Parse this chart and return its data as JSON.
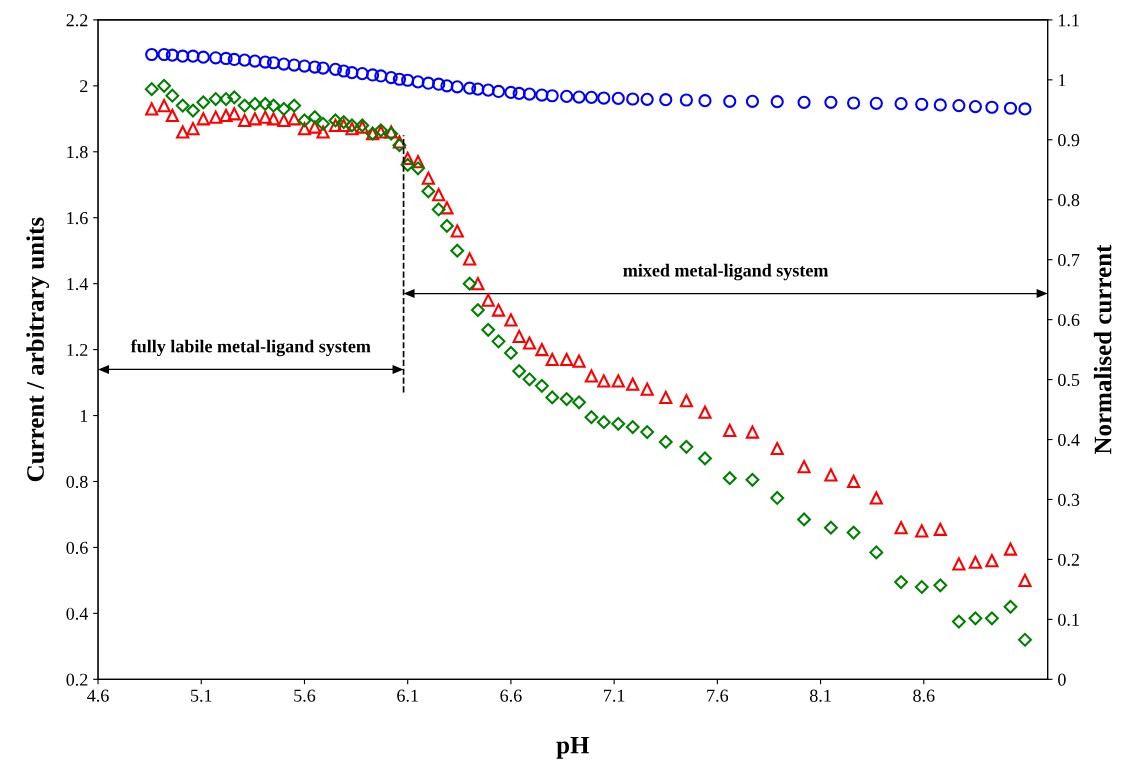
{
  "chart_data": {
    "type": "scatter",
    "xlabel": "pH",
    "ylabel": "Current / arbitrary units",
    "y2label": "Normalised current",
    "x": [
      4.86,
      4.92,
      4.96,
      5.01,
      5.06,
      5.11,
      5.17,
      5.22,
      5.26,
      5.31,
      5.36,
      5.41,
      5.45,
      5.5,
      5.55,
      5.6,
      5.65,
      5.69,
      5.75,
      5.79,
      5.83,
      5.88,
      5.93,
      5.97,
      6.02,
      6.06,
      6.1,
      6.15,
      6.2,
      6.25,
      6.29,
      6.34,
      6.4,
      6.44,
      6.49,
      6.54,
      6.6,
      6.64,
      6.69,
      6.75,
      6.8,
      6.87,
      6.93,
      6.99,
      7.05,
      7.12,
      7.19,
      7.26,
      7.35,
      7.45,
      7.54,
      7.66,
      7.77,
      7.89,
      8.02,
      8.15,
      8.26,
      8.37,
      8.49,
      8.59,
      8.68,
      8.77,
      8.85,
      8.93,
      9.02,
      9.09
    ],
    "series": [
      {
        "color": "#0000ff",
        "marker": "circle",
        "values": [
          2.095,
          2.095,
          2.093,
          2.09,
          2.09,
          2.087,
          2.085,
          2.083,
          2.08,
          2.078,
          2.075,
          2.072,
          2.07,
          2.066,
          2.063,
          2.06,
          2.057,
          2.054,
          2.05,
          2.045,
          2.04,
          2.037,
          2.033,
          2.03,
          2.025,
          2.02,
          2.017,
          2.012,
          2.008,
          2.005,
          2.0,
          1.997,
          1.993,
          1.99,
          1.987,
          1.983,
          1.98,
          1.977,
          1.975,
          1.972,
          1.97,
          1.968,
          1.966,
          1.965,
          1.963,
          1.962,
          1.96,
          1.959,
          1.958,
          1.957,
          1.955,
          1.953,
          1.953,
          1.952,
          1.95,
          1.95,
          1.948,
          1.947,
          1.946,
          1.944,
          1.942,
          1.94,
          1.937,
          1.935,
          1.932,
          1.93
        ]
      },
      {
        "color": "#ff0000",
        "marker": "triangle",
        "values": [
          1.93,
          1.94,
          1.91,
          1.86,
          1.87,
          1.9,
          1.905,
          1.91,
          1.915,
          1.895,
          1.9,
          1.905,
          1.9,
          1.895,
          1.9,
          1.87,
          1.875,
          1.86,
          1.88,
          1.88,
          1.87,
          1.875,
          1.855,
          1.86,
          1.86,
          1.83,
          1.78,
          1.77,
          1.72,
          1.67,
          1.63,
          1.56,
          1.475,
          1.4,
          1.35,
          1.32,
          1.29,
          1.24,
          1.22,
          1.2,
          1.17,
          1.17,
          1.165,
          1.12,
          1.105,
          1.105,
          1.095,
          1.08,
          1.055,
          1.045,
          1.01,
          0.955,
          0.95,
          0.9,
          0.845,
          0.82,
          0.8,
          0.75,
          0.66,
          0.65,
          0.655,
          0.55,
          0.555,
          0.56,
          0.595,
          0.5
        ]
      },
      {
        "color": "#008000",
        "marker": "diamond",
        "values": [
          1.99,
          2.0,
          1.97,
          1.94,
          1.925,
          1.95,
          1.96,
          1.96,
          1.965,
          1.94,
          1.945,
          1.945,
          1.94,
          1.93,
          1.94,
          1.895,
          1.905,
          1.885,
          1.895,
          1.89,
          1.88,
          1.88,
          1.855,
          1.865,
          1.855,
          1.82,
          1.76,
          1.75,
          1.68,
          1.625,
          1.575,
          1.5,
          1.4,
          1.32,
          1.26,
          1.225,
          1.19,
          1.135,
          1.11,
          1.09,
          1.055,
          1.05,
          1.04,
          0.995,
          0.98,
          0.975,
          0.965,
          0.95,
          0.92,
          0.905,
          0.87,
          0.81,
          0.805,
          0.75,
          0.685,
          0.66,
          0.645,
          0.585,
          0.495,
          0.48,
          0.485,
          0.375,
          0.385,
          0.385,
          0.42,
          0.32
        ]
      }
    ],
    "xlim": [
      4.6,
      9.2
    ],
    "xticks": [
      4.6,
      5.1,
      5.6,
      6.1,
      6.6,
      7.1,
      7.6,
      8.1,
      8.6
    ],
    "ylim": [
      0.2,
      2.2
    ],
    "yticks": [
      0.2,
      0.4,
      0.6,
      0.8,
      1,
      1.2,
      1.4,
      1.6,
      1.8,
      2,
      2.2
    ],
    "y2lim": [
      0,
      1.1
    ],
    "y2ticks": [
      0,
      0.1,
      0.2,
      0.3,
      0.4,
      0.5,
      0.6,
      0.7,
      0.8,
      0.9,
      1,
      1.1
    ],
    "ref_lines": [
      {
        "axis": "x",
        "value": 6.08,
        "color": "#000000",
        "line_style": "dashed"
      }
    ],
    "annotations": [
      "fully labile metal-ligand system",
      "mixed metal-ligand system"
    ],
    "grid": false,
    "legend": false
  }
}
